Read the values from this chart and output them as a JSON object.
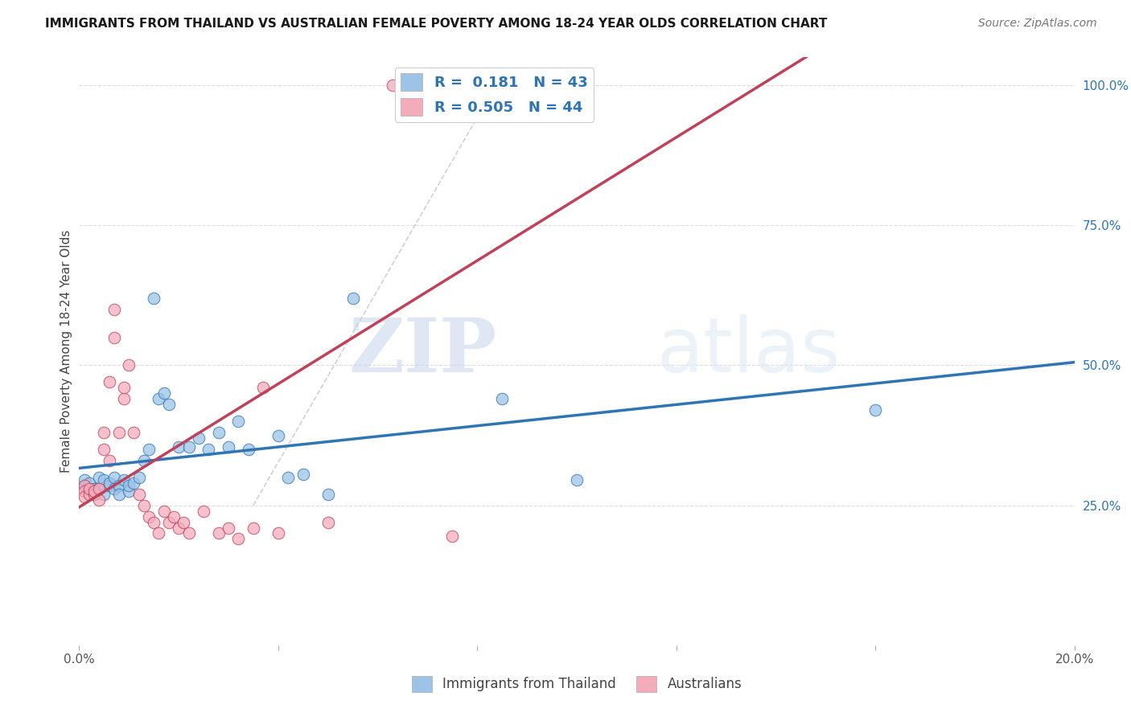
{
  "title": "IMMIGRANTS FROM THAILAND VS AUSTRALIAN FEMALE POVERTY AMONG 18-24 YEAR OLDS CORRELATION CHART",
  "source": "Source: ZipAtlas.com",
  "ylabel": "Female Poverty Among 18-24 Year Olds",
  "x_min": 0.0,
  "x_max": 0.2,
  "y_min": 0.0,
  "y_max": 1.05,
  "x_ticks": [
    0.0,
    0.04,
    0.08,
    0.12,
    0.16,
    0.2
  ],
  "x_tick_labels": [
    "0.0%",
    "",
    "",
    "",
    "",
    "20.0%"
  ],
  "y_ticks_right": [
    0.0,
    0.25,
    0.5,
    0.75,
    1.0
  ],
  "y_tick_labels_right": [
    "",
    "25.0%",
    "50.0%",
    "75.0%",
    "100.0%"
  ],
  "color_blue": "#9dc3e6",
  "color_pink": "#f4acbb",
  "color_blue_line": "#2e75b6",
  "color_pink_line": "#c0415a",
  "color_dashed": "#cccccc",
  "watermark_zip": "ZIP",
  "watermark_atlas": "atlas",
  "blue_scatter_x": [
    0.001,
    0.001,
    0.002,
    0.002,
    0.003,
    0.003,
    0.004,
    0.004,
    0.005,
    0.005,
    0.006,
    0.006,
    0.007,
    0.007,
    0.008,
    0.008,
    0.009,
    0.01,
    0.01,
    0.011,
    0.012,
    0.013,
    0.014,
    0.015,
    0.016,
    0.017,
    0.018,
    0.02,
    0.022,
    0.024,
    0.026,
    0.028,
    0.03,
    0.032,
    0.034,
    0.04,
    0.042,
    0.045,
    0.05,
    0.055,
    0.085,
    0.1,
    0.16
  ],
  "blue_scatter_y": [
    0.285,
    0.295,
    0.28,
    0.29,
    0.27,
    0.28,
    0.28,
    0.3,
    0.27,
    0.295,
    0.285,
    0.29,
    0.3,
    0.28,
    0.285,
    0.27,
    0.295,
    0.275,
    0.285,
    0.29,
    0.3,
    0.33,
    0.35,
    0.62,
    0.44,
    0.45,
    0.43,
    0.355,
    0.355,
    0.37,
    0.35,
    0.38,
    0.355,
    0.4,
    0.35,
    0.375,
    0.3,
    0.305,
    0.27,
    0.62,
    0.44,
    0.295,
    0.42
  ],
  "pink_scatter_x": [
    0.001,
    0.001,
    0.001,
    0.002,
    0.002,
    0.003,
    0.003,
    0.004,
    0.004,
    0.005,
    0.005,
    0.006,
    0.006,
    0.007,
    0.007,
    0.008,
    0.009,
    0.009,
    0.01,
    0.011,
    0.012,
    0.013,
    0.014,
    0.015,
    0.016,
    0.017,
    0.018,
    0.019,
    0.02,
    0.021,
    0.022,
    0.025,
    0.028,
    0.03,
    0.032,
    0.035,
    0.037,
    0.04,
    0.05,
    0.063,
    0.065,
    0.07,
    0.072,
    0.075
  ],
  "pink_scatter_y": [
    0.285,
    0.275,
    0.265,
    0.27,
    0.28,
    0.27,
    0.275,
    0.26,
    0.28,
    0.35,
    0.38,
    0.33,
    0.47,
    0.55,
    0.6,
    0.38,
    0.44,
    0.46,
    0.5,
    0.38,
    0.27,
    0.25,
    0.23,
    0.22,
    0.2,
    0.24,
    0.22,
    0.23,
    0.21,
    0.22,
    0.2,
    0.24,
    0.2,
    0.21,
    0.19,
    0.21,
    0.46,
    0.2,
    0.22,
    1.0,
    1.0,
    1.0,
    0.97,
    0.195
  ]
}
